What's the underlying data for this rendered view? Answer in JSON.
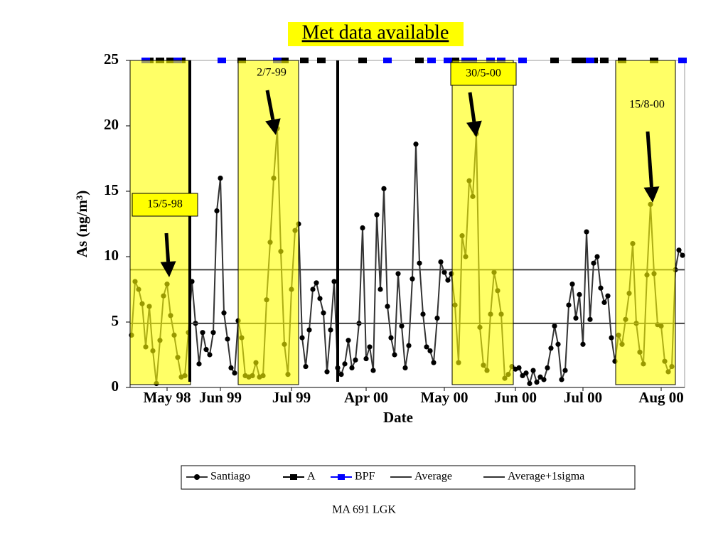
{
  "chart_data": {
    "type": "line",
    "title": "Met data available",
    "x_label": "Date",
    "y_label": "As (ng/m³)",
    "footer": "MA 691 LGK",
    "xlim": [
      -0.4,
      155.6
    ],
    "ylim": [
      0,
      25
    ],
    "yticks": [
      0,
      5,
      10,
      15,
      20,
      25
    ],
    "xticks": [
      {
        "value": 10,
        "label": "May 98"
      },
      {
        "value": 25,
        "label": "Jun 99"
      },
      {
        "value": 45,
        "label": "Jul 99"
      },
      {
        "value": 66,
        "label": "Apr 00"
      },
      {
        "value": 88,
        "label": "May 00"
      },
      {
        "value": 108,
        "label": "Jun 00"
      },
      {
        "value": 127,
        "label": "Jul 00"
      },
      {
        "value": 149,
        "label": "Aug 00"
      }
    ],
    "highlights": [
      [
        -0.4,
        16.6
      ],
      [
        30,
        47
      ],
      [
        90.2,
        107.4
      ],
      [
        136.2,
        153
      ]
    ],
    "vlines": [
      16.4,
      58
    ],
    "annotations": [
      "15/5-98",
      "2/7-99",
      "30/5-00",
      "15/8-00"
    ],
    "series": [
      {
        "name": "Santiago",
        "color": "#000000",
        "values": [
          4,
          8.1,
          7.5,
          6.4,
          3.1,
          6.2,
          2.8,
          0.3,
          3.6,
          7,
          7.9,
          5.5,
          4,
          2.3,
          0.8,
          0.9,
          4.2,
          8.1,
          4.9,
          1.8,
          4.2,
          2.9,
          2.5,
          4.2,
          13.5,
          16,
          5.7,
          3.7,
          1.5,
          1.1,
          5.1,
          3.8,
          0.9,
          0.8,
          0.9,
          1.9,
          0.8,
          0.9,
          6.7,
          11.1,
          16,
          19.8,
          10.4,
          3.3,
          1,
          7.5,
          12,
          12.5,
          3.8,
          1.6,
          4.4,
          7.5,
          8,
          6.8,
          5.7,
          1.2,
          4.4,
          8.1,
          1.5,
          1,
          1.8,
          3.6,
          1.5,
          2.1,
          4.9,
          12.2,
          2.2,
          3.1,
          1.3,
          13.2,
          7.5,
          15.2,
          6.2,
          3.8,
          2.5,
          8.7,
          4.7,
          1.5,
          3.2,
          8.3,
          18.6,
          9.5,
          5.6,
          3.1,
          2.8,
          1.9,
          5.3,
          9.6,
          8.8,
          8.2,
          8.7,
          6.3,
          1.9,
          11.6,
          10,
          15.8,
          14.6,
          19.4,
          4.6,
          1.7,
          1.3,
          5.6,
          8.8,
          7.4,
          5.6,
          0.7,
          1,
          1.6,
          1.4,
          1.5,
          0.9,
          1.1,
          0.3,
          1.3,
          0.4,
          0.8,
          0.6,
          1.5,
          3,
          4.7,
          3.3,
          0.6,
          1.3,
          6.3,
          7.9,
          5.3,
          7.1,
          3.3,
          11.9,
          5.2,
          9.5,
          10,
          7.6,
          6.5,
          7,
          3.8,
          2,
          4,
          3.3,
          5.2,
          7.2,
          11,
          4.9,
          2.7,
          1.8,
          8.6,
          14,
          8.7,
          4.8,
          4.7,
          2,
          1.2,
          1.6,
          9,
          10.5,
          10.1
        ]
      },
      {
        "name": "A",
        "color": "#000000",
        "x": [
          5,
          8,
          11,
          14,
          31,
          43,
          48.6,
          53.4,
          65,
          81,
          91,
          119,
          125,
          127,
          130,
          133,
          138,
          147
        ],
        "values": [
          25,
          25,
          25,
          25,
          25,
          25,
          25,
          25,
          25,
          25,
          25,
          25,
          25,
          25,
          25,
          25,
          25,
          25
        ]
      },
      {
        "name": "BPF",
        "color": "#0000ff",
        "x": [
          4,
          13,
          25.4,
          41,
          72,
          84.4,
          89,
          94,
          96,
          101,
          104,
          110,
          129,
          155
        ],
        "values": [
          25,
          25,
          25,
          25,
          25,
          25,
          25,
          25,
          25,
          25,
          25,
          25,
          25,
          25
        ]
      },
      {
        "name": "Average",
        "color": "#404040",
        "value": 4.9
      },
      {
        "name": "Average+1sigma",
        "color": "#404040",
        "value": 9
      }
    ]
  }
}
